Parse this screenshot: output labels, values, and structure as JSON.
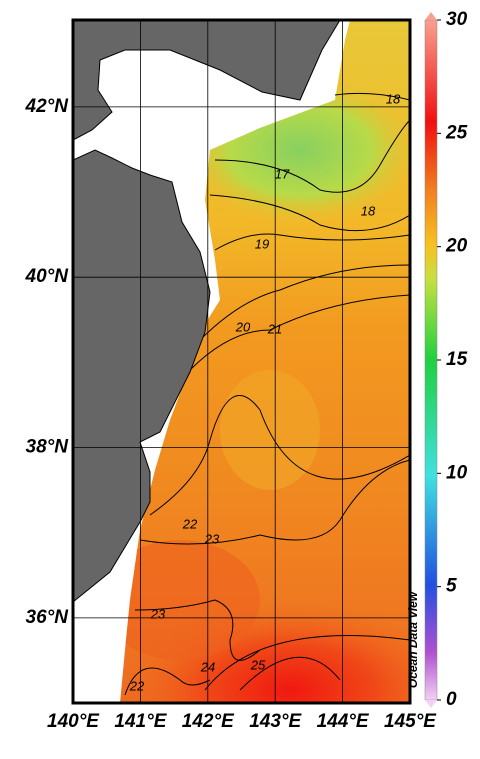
{
  "map": {
    "x_axis": {
      "lim": [
        140,
        145
      ],
      "ticks": [
        {
          "value": 140,
          "label": "140°E"
        },
        {
          "value": 141,
          "label": "141°E"
        },
        {
          "value": 142,
          "label": "142°E"
        },
        {
          "value": 143,
          "label": "143°E"
        },
        {
          "value": 144,
          "label": "144°E"
        },
        {
          "value": 145,
          "label": "145°E"
        }
      ]
    },
    "y_axis": {
      "lim": [
        35,
        43.02
      ],
      "ticks": [
        {
          "value": 36,
          "label": "36°N"
        },
        {
          "value": 38,
          "label": "38°N"
        },
        {
          "value": 40,
          "label": "40°N"
        },
        {
          "value": 42,
          "label": "42°N"
        }
      ]
    },
    "colorbar": {
      "lim": [
        0,
        30
      ],
      "ticks": [
        0,
        5,
        10,
        15,
        20,
        25,
        30
      ]
    },
    "contour_labels": [
      18,
      17,
      18,
      19,
      20,
      21,
      22,
      23,
      23,
      22,
      24,
      25
    ],
    "watermark": "Ocean Data View"
  }
}
